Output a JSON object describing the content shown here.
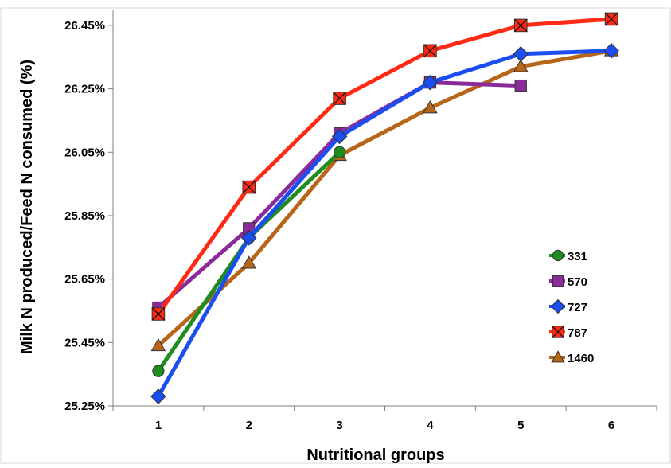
{
  "chart_data": {
    "type": "line",
    "title": "",
    "xlabel": "Nutritional groups",
    "ylabel": "Milk N produced/Feed N consumed (%)",
    "x": [
      1,
      2,
      3,
      4,
      5,
      6
    ],
    "x_tick_labels": [
      "1",
      "2",
      "3",
      "4",
      "5",
      "6"
    ],
    "ylim": [
      25.25,
      26.5
    ],
    "y_ticks": [
      25.25,
      25.45,
      25.65,
      25.85,
      26.05,
      26.25,
      26.45
    ],
    "y_tick_labels": [
      "25.25%",
      "25.45%",
      "25.65%",
      "25.85%",
      "26.05%",
      "26.25%",
      "26.45%"
    ],
    "grid": false,
    "legend_position": "right",
    "series": [
      {
        "name": "331",
        "color": "#1e8c1e",
        "marker": "circle",
        "x": [
          1,
          2,
          3
        ],
        "values": [
          25.36,
          25.78,
          26.05
        ]
      },
      {
        "name": "570",
        "color": "#8b2a9b",
        "marker": "square",
        "x": [
          1,
          2,
          3,
          4,
          5
        ],
        "values": [
          25.56,
          25.81,
          26.11,
          26.27,
          26.26
        ]
      },
      {
        "name": "727",
        "color": "#1a4ef0",
        "marker": "diamond",
        "x": [
          1,
          2,
          3,
          4,
          5,
          6
        ],
        "values": [
          25.28,
          25.78,
          26.1,
          26.27,
          26.36,
          26.37
        ]
      },
      {
        "name": "787",
        "color": "#ff2a14",
        "marker": "x-square",
        "x": [
          1,
          2,
          3,
          4,
          5,
          6
        ],
        "values": [
          25.54,
          25.94,
          26.22,
          26.37,
          26.45,
          26.47
        ]
      },
      {
        "name": "1460",
        "color": "#b8651a",
        "marker": "triangle",
        "x": [
          1,
          2,
          3,
          4,
          5,
          6
        ],
        "values": [
          25.44,
          25.7,
          26.04,
          26.19,
          26.32,
          26.37
        ]
      }
    ]
  }
}
